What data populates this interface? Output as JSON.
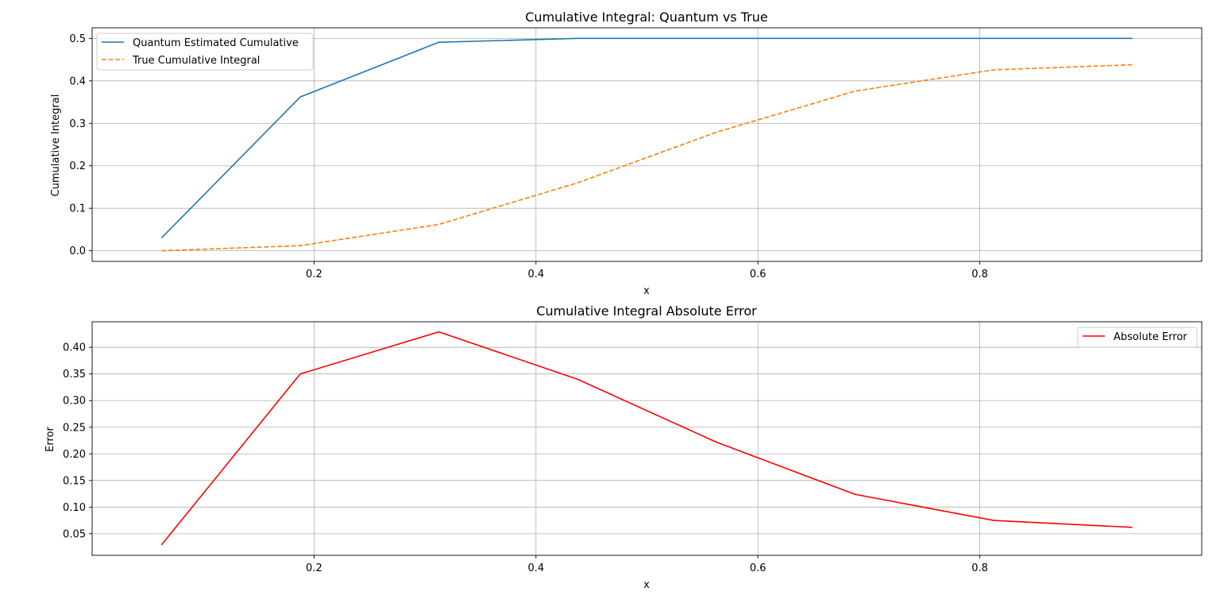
{
  "chart_data": [
    {
      "type": "line",
      "title": "Cumulative Integral: Quantum vs True",
      "xlabel": "x",
      "ylabel": "Cumulative Integral",
      "xlim": [
        0.0,
        1.0
      ],
      "ylim": [
        -0.025,
        0.525
      ],
      "xticks": [
        0.2,
        0.4,
        0.6,
        0.8
      ],
      "xtick_labels": [
        "0.2",
        "0.4",
        "0.6",
        "0.8"
      ],
      "yticks": [
        0.0,
        0.1,
        0.2,
        0.3,
        0.4,
        0.5
      ],
      "ytick_labels": [
        "0.0",
        "0.1",
        "0.2",
        "0.3",
        "0.4",
        "0.5"
      ],
      "grid": true,
      "legend_position": "upper-left",
      "x": [
        0.0625,
        0.1875,
        0.3125,
        0.4375,
        0.5625,
        0.6875,
        0.8125,
        0.9375
      ],
      "series": [
        {
          "name": "Quantum Estimated Cumulative",
          "color": "#1f77b4",
          "dash": "solid",
          "values": [
            0.03,
            0.362,
            0.491,
            0.5,
            0.5,
            0.5,
            0.5,
            0.5
          ]
        },
        {
          "name": "True Cumulative Integral",
          "color": "#ff7f0e",
          "dash": "dashed",
          "values": [
            0.0,
            0.012,
            0.062,
            0.16,
            0.279,
            0.376,
            0.426,
            0.438
          ]
        }
      ]
    },
    {
      "type": "line",
      "title": "Cumulative Integral Absolute Error",
      "xlabel": "x",
      "ylabel": "Error",
      "xlim": [
        0.0,
        1.0
      ],
      "ylim": [
        0.0095,
        0.448
      ],
      "xticks": [
        0.2,
        0.4,
        0.6,
        0.8
      ],
      "xtick_labels": [
        "0.2",
        "0.4",
        "0.6",
        "0.8"
      ],
      "yticks": [
        0.05,
        0.1,
        0.15,
        0.2,
        0.25,
        0.3,
        0.35,
        0.4
      ],
      "ytick_labels": [
        "0.05",
        "0.10",
        "0.15",
        "0.20",
        "0.25",
        "0.30",
        "0.35",
        "0.40"
      ],
      "grid": true,
      "legend_position": "upper-right",
      "x": [
        0.0625,
        0.1875,
        0.3125,
        0.4375,
        0.5625,
        0.6875,
        0.8125,
        0.9375
      ],
      "series": [
        {
          "name": "Absolute Error",
          "color": "#ff0000",
          "dash": "solid",
          "values": [
            0.029,
            0.35,
            0.429,
            0.34,
            0.222,
            0.124,
            0.075,
            0.062
          ]
        }
      ]
    }
  ]
}
